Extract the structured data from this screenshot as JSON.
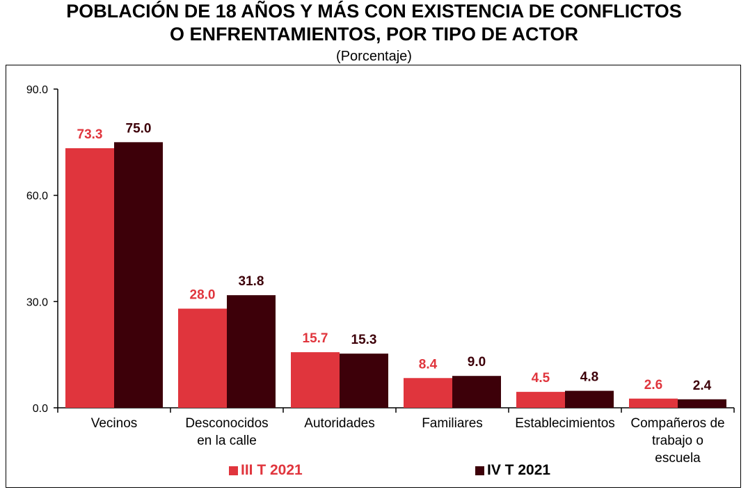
{
  "chart_data": {
    "type": "bar",
    "title_line1": "POBLACIÓN DE 18 AÑOS Y MÁS CON EXISTENCIA DE CONFLICTOS",
    "title_line2": "O ENFRENTAMIENTOS, POR TIPO DE ACTOR",
    "subtitle": "(Porcentaje)",
    "categories": [
      [
        "Vecinos"
      ],
      [
        "Desconocidos",
        "en la calle"
      ],
      [
        "Autoridades"
      ],
      [
        "Familiares"
      ],
      [
        "Establecimientos"
      ],
      [
        "Compañeros de",
        "trabajo o",
        "escuela"
      ]
    ],
    "series": [
      {
        "name": "III T 2021",
        "color": "#e0353d",
        "label_color": "#e0353d",
        "values": [
          73.3,
          28.0,
          15.7,
          8.4,
          4.5,
          2.6
        ]
      },
      {
        "name": "IV T 2021",
        "color": "#3d0009",
        "label_color": "#3d0009",
        "values": [
          75.0,
          31.8,
          15.3,
          9.0,
          4.8,
          2.4
        ]
      }
    ],
    "ylim": [
      0,
      90
    ],
    "yticks": [
      0,
      30,
      60,
      90
    ],
    "ytick_labels": [
      "0.0",
      "30.0",
      "60.0",
      "90.0"
    ],
    "xlabel": "",
    "ylabel": "",
    "grid": false,
    "legend_position": "bottom"
  }
}
